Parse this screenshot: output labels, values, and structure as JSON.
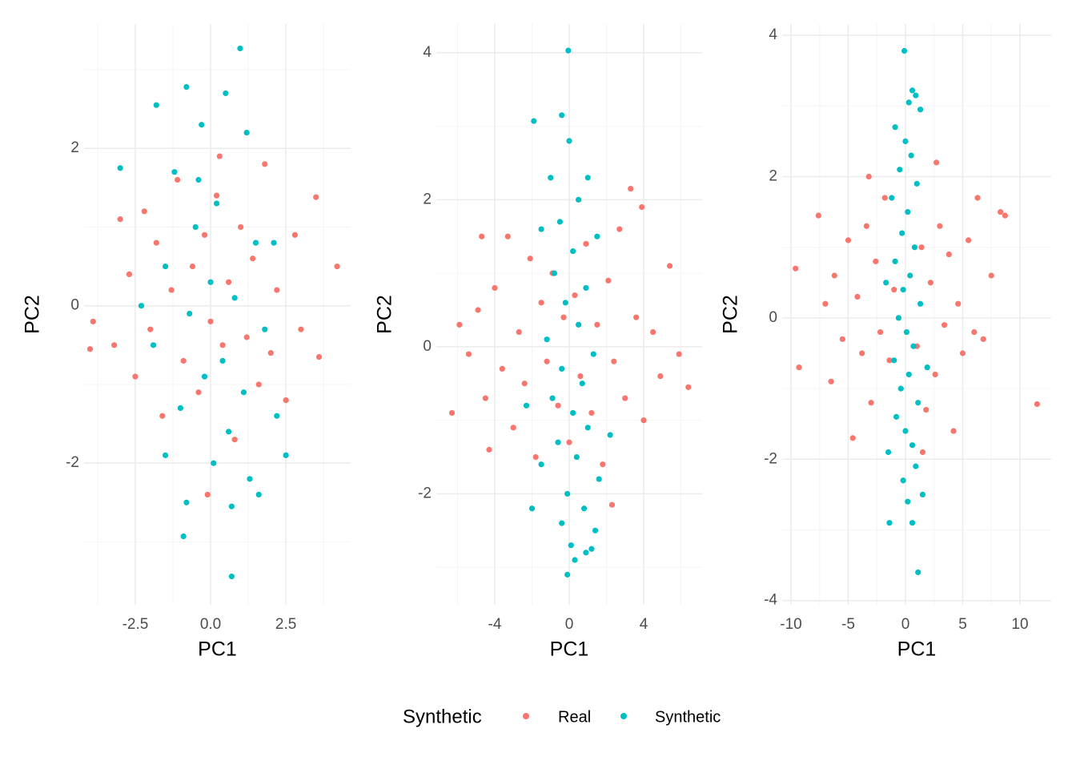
{
  "chart_data": [
    {
      "type": "scatter",
      "x_label": "PC1",
      "y_label": "PC2",
      "xlim": [
        -4.2,
        4.65
      ],
      "ylim": [
        -3.8,
        3.58
      ],
      "xticks": [
        -2.5,
        {
          "value": 0,
          "label": "0.0"
        },
        2.5
      ],
      "yticks": [
        -2,
        0,
        2
      ],
      "x_minor_ticks": [
        -3.75,
        -1.25,
        1.25,
        3.75
      ],
      "y_minor_ticks": [
        -3,
        -1,
        1,
        3
      ],
      "grid": true,
      "series": [
        {
          "name": "Real",
          "color": "#F8766D",
          "x": [
            -4.0,
            -3.9,
            -3.2,
            -3.0,
            -2.7,
            -2.5,
            -2.2,
            -2.0,
            -1.8,
            -1.6,
            -1.3,
            -1.1,
            -0.9,
            -0.6,
            -0.4,
            -0.2,
            0.0,
            0.2,
            0.4,
            0.6,
            0.8,
            1.0,
            1.2,
            1.4,
            1.6,
            1.8,
            2.0,
            2.2,
            2.5,
            2.8,
            3.0,
            3.5,
            3.6,
            4.2,
            -0.1,
            0.3
          ],
          "values": [
            -0.55,
            -0.2,
            -0.5,
            1.1,
            0.4,
            -0.9,
            1.2,
            -0.3,
            0.8,
            -1.4,
            0.2,
            1.6,
            -0.7,
            0.5,
            -1.1,
            0.9,
            -0.2,
            1.4,
            -0.5,
            0.3,
            -1.7,
            1.0,
            -0.4,
            0.6,
            -1.0,
            1.8,
            -0.6,
            0.2,
            -1.2,
            0.9,
            -0.3,
            1.38,
            -0.65,
            0.5,
            -2.4,
            1.9
          ]
        },
        {
          "name": "Synthetic",
          "color": "#00BFC4",
          "x": [
            0.98,
            -0.8,
            -1.8,
            0.5,
            -0.3,
            1.2,
            -3.0,
            -1.2,
            0.2,
            -0.5,
            1.5,
            -1.5,
            0.0,
            0.8,
            -0.7,
            1.8,
            -1.9,
            0.4,
            -0.2,
            1.1,
            -1.0,
            2.2,
            0.6,
            -1.5,
            0.1,
            1.3,
            -0.8,
            0.7,
            2.5,
            -0.9,
            0.7,
            1.6,
            -2.3,
            2.1,
            -0.4
          ],
          "values": [
            3.27,
            2.78,
            2.55,
            2.7,
            2.3,
            2.2,
            1.75,
            1.7,
            1.3,
            1.0,
            0.8,
            0.5,
            0.3,
            0.1,
            -0.1,
            -0.3,
            -0.5,
            -0.7,
            -0.9,
            -1.1,
            -1.3,
            -1.4,
            -1.6,
            -1.9,
            -2.0,
            -2.2,
            -2.5,
            -2.55,
            -1.9,
            -2.93,
            -3.44,
            -2.4,
            0.0,
            0.8,
            1.6
          ]
        }
      ]
    },
    {
      "type": "scatter",
      "x_label": "PC1",
      "y_label": "PC2",
      "xlim": [
        -7.14,
        7.14
      ],
      "ylim": [
        -3.51,
        4.39
      ],
      "xticks": [
        -4,
        0,
        4
      ],
      "yticks": [
        -2,
        0,
        2,
        4
      ],
      "x_minor_ticks": [
        -6,
        -2,
        2,
        6
      ],
      "y_minor_ticks": [
        -3,
        -1,
        1,
        3
      ],
      "grid": true,
      "series": [
        {
          "name": "Real",
          "color": "#F8766D",
          "x": [
            -6.3,
            -5.9,
            -5.4,
            -4.9,
            -4.5,
            -4.3,
            -4.0,
            -3.6,
            -3.3,
            -3.0,
            -2.7,
            -2.4,
            -2.1,
            -1.8,
            -1.5,
            -1.2,
            -0.9,
            -0.6,
            -0.3,
            0.0,
            0.3,
            0.6,
            0.9,
            1.2,
            1.5,
            1.8,
            2.1,
            2.4,
            2.7,
            3.0,
            3.3,
            3.6,
            4.0,
            4.5,
            4.9,
            5.4,
            5.9,
            6.4,
            3.9,
            2.3,
            -4.7
          ],
          "values": [
            -0.9,
            0.3,
            -0.1,
            0.5,
            -0.7,
            -1.4,
            0.8,
            -0.3,
            1.5,
            -1.1,
            0.2,
            -0.5,
            1.2,
            -1.5,
            0.6,
            -0.2,
            1.0,
            -0.8,
            0.4,
            -1.3,
            0.7,
            -0.4,
            1.4,
            -0.9,
            0.3,
            -1.6,
            0.9,
            -0.2,
            1.6,
            -0.7,
            2.15,
            0.4,
            -1.0,
            0.2,
            -0.4,
            1.1,
            -0.1,
            -0.55,
            1.9,
            -2.15,
            1.5
          ]
        },
        {
          "name": "Synthetic",
          "color": "#00BFC4",
          "x": [
            -0.05,
            -0.4,
            -1.9,
            0.0,
            -1.0,
            1.0,
            0.5,
            -0.5,
            1.5,
            -1.5,
            0.2,
            -0.8,
            0.9,
            -0.2,
            0.5,
            -1.2,
            1.3,
            -0.4,
            0.7,
            -0.9,
            0.2,
            1.0,
            -0.6,
            0.4,
            -1.5,
            1.6,
            -0.1,
            0.8,
            -2.0,
            -0.4,
            1.4,
            0.1,
            0.9,
            -0.1,
            0.3,
            1.2,
            2.2,
            -2.3
          ],
          "values": [
            4.03,
            3.15,
            3.07,
            2.8,
            2.3,
            2.3,
            2.0,
            1.7,
            1.5,
            1.6,
            1.3,
            1.0,
            0.8,
            0.6,
            0.3,
            0.1,
            -0.1,
            -0.3,
            -0.5,
            -0.7,
            -0.9,
            -1.1,
            -1.3,
            -1.5,
            -1.6,
            -1.8,
            -2.0,
            -2.2,
            -2.2,
            -2.4,
            -2.5,
            -2.7,
            -2.8,
            -3.1,
            -2.9,
            -2.75,
            -1.2,
            -0.8
          ]
        }
      ]
    },
    {
      "type": "scatter",
      "x_label": "PC1",
      "y_label": "PC2",
      "xlim": [
        -10.77,
        12.73
      ],
      "ylim": [
        -4.06,
        4.16
      ],
      "xticks": [
        -10,
        -5,
        0,
        5,
        10
      ],
      "yticks": [
        -4,
        -2,
        0,
        2,
        4
      ],
      "x_minor_ticks": [
        -7.5,
        -2.5,
        2.5,
        7.5
      ],
      "y_minor_ticks": [
        -3,
        -1,
        1,
        3
      ],
      "grid": true,
      "series": [
        {
          "name": "Real",
          "color": "#F8766D",
          "x": [
            -9.6,
            -9.3,
            -7.6,
            -7.0,
            -6.5,
            -6.2,
            -5.5,
            -5.0,
            -4.6,
            -4.2,
            -3.8,
            -3.4,
            -3.0,
            -2.6,
            -2.2,
            -1.8,
            -1.4,
            -1.0,
            1.0,
            1.4,
            1.8,
            2.2,
            2.6,
            3.0,
            3.4,
            3.8,
            4.2,
            4.6,
            5.0,
            5.5,
            6.0,
            6.3,
            6.8,
            7.5,
            8.3,
            8.7,
            11.5,
            2.7,
            -3.2,
            1.5
          ],
          "values": [
            0.7,
            -0.7,
            1.45,
            0.2,
            -0.9,
            0.6,
            -0.3,
            1.1,
            -1.7,
            0.3,
            -0.5,
            1.3,
            -1.2,
            0.8,
            -0.2,
            1.7,
            -0.6,
            0.4,
            -0.4,
            1.0,
            -1.3,
            0.5,
            -0.8,
            1.3,
            -0.1,
            0.9,
            -1.6,
            0.2,
            -0.5,
            1.1,
            -0.2,
            1.7,
            -0.3,
            0.6,
            1.5,
            1.45,
            -1.22,
            2.2,
            2.0,
            -1.9
          ]
        },
        {
          "name": "Synthetic",
          "color": "#00BFC4",
          "x": [
            -0.1,
            0.6,
            0.9,
            0.3,
            1.3,
            -0.9,
            0.0,
            0.5,
            -0.5,
            1.0,
            -1.2,
            0.2,
            -0.3,
            0.8,
            -0.9,
            0.4,
            -0.2,
            1.3,
            -0.6,
            0.1,
            0.7,
            -1.0,
            0.3,
            -0.4,
            1.1,
            -0.8,
            0.0,
            0.6,
            -1.5,
            0.9,
            -0.2,
            -1.4,
            0.6,
            0.2,
            1.1,
            1.5,
            -1.7,
            1.9
          ],
          "values": [
            3.78,
            3.22,
            3.15,
            3.05,
            2.95,
            2.7,
            2.5,
            2.3,
            2.1,
            1.9,
            1.7,
            1.5,
            1.2,
            1.0,
            0.8,
            0.6,
            0.4,
            0.2,
            0.0,
            -0.2,
            -0.4,
            -0.6,
            -0.8,
            -1.0,
            -1.2,
            -1.4,
            -1.6,
            -1.8,
            -1.9,
            -2.1,
            -2.3,
            -2.9,
            -2.9,
            -2.6,
            -3.6,
            -2.5,
            0.5,
            -0.7
          ]
        }
      ]
    }
  ],
  "legend": {
    "title": "Synthetic",
    "position": "bottom"
  }
}
